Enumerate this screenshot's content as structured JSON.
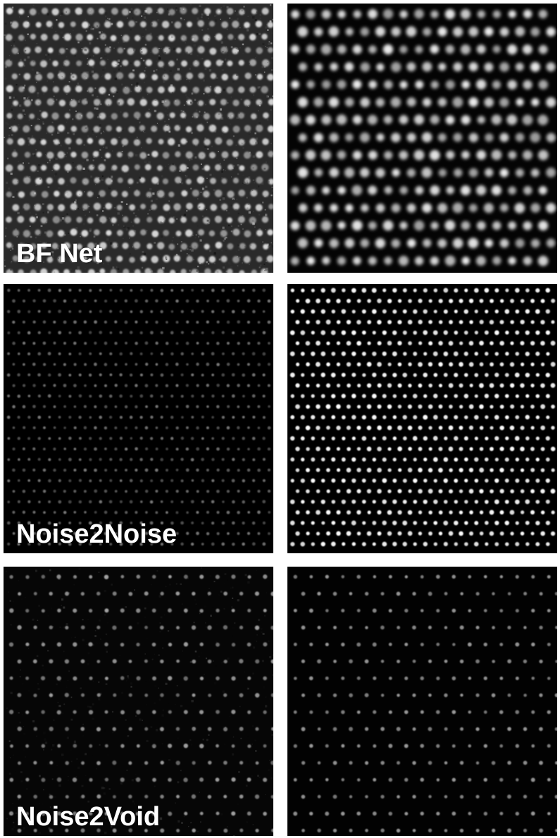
{
  "figure": {
    "rows": [
      {
        "label": "BF Net",
        "left": {
          "style": "noisy-raw"
        },
        "right": {
          "style": "blurred-lattice"
        }
      },
      {
        "label": "Noise2Noise",
        "left": {
          "style": "dim-fine-lattice"
        },
        "right": {
          "style": "bright-fine-lattice"
        }
      },
      {
        "label": "Noise2Void",
        "left": {
          "style": "grainy-lattice"
        },
        "right": {
          "style": "clean-lattice"
        }
      }
    ]
  }
}
